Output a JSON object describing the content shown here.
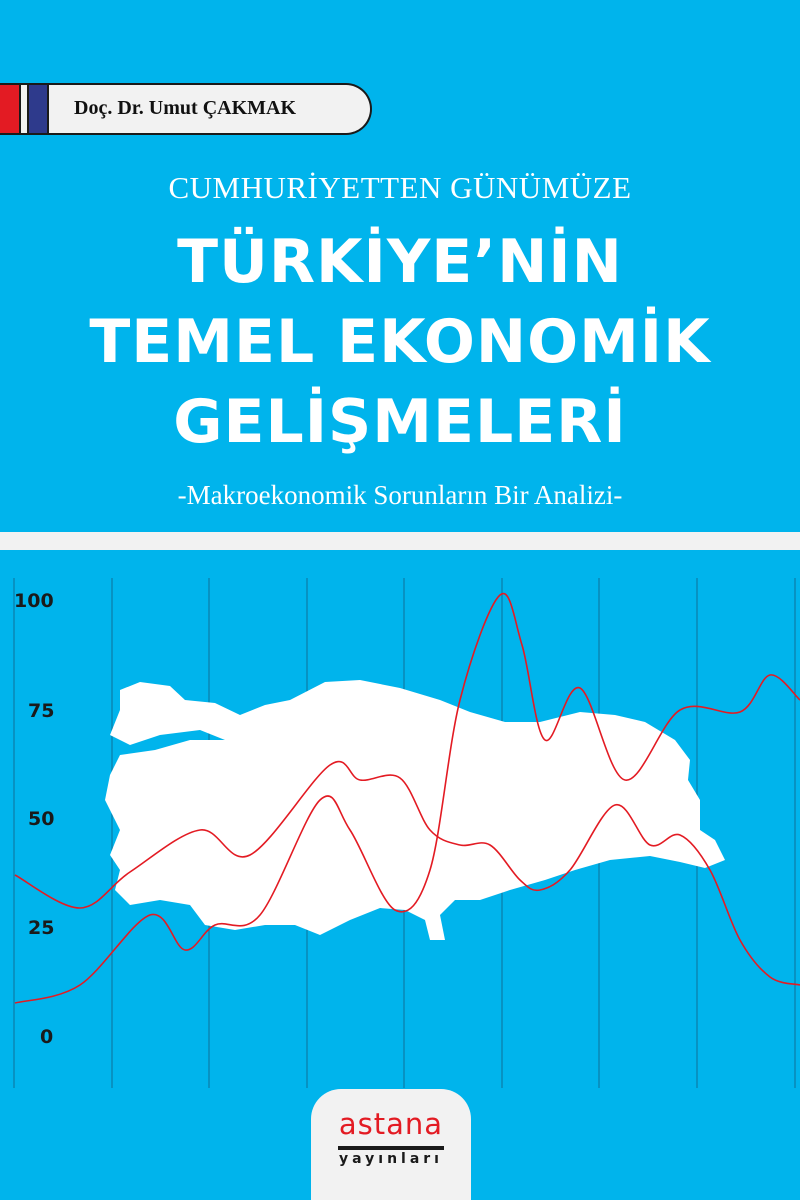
{
  "author": {
    "name": "Doç. Dr. Umut ÇAKMAK"
  },
  "cover": {
    "pretitle": "CUMHURİYETTEN GÜNÜMÜZE",
    "title_lines": [
      "TÜRKİYE’NİN",
      "TEMEL EKONOMİK",
      "GELİŞMELERİ"
    ],
    "subtitle": "-Makroekonomik Sorunların Bir Analizi-"
  },
  "chart": {
    "y_ticks": [
      "100",
      "75",
      "50",
      "25",
      "0"
    ],
    "ylim": [
      0,
      100
    ],
    "line_color": "#e31b23",
    "map_color": "#ffffff"
  },
  "publisher": {
    "name": "astana",
    "sub": "yayınları"
  },
  "colors": {
    "background": "#00b4ec",
    "band": "#f2f2f2",
    "accent_red": "#e31b23",
    "accent_blue": "#2e3a8c"
  }
}
